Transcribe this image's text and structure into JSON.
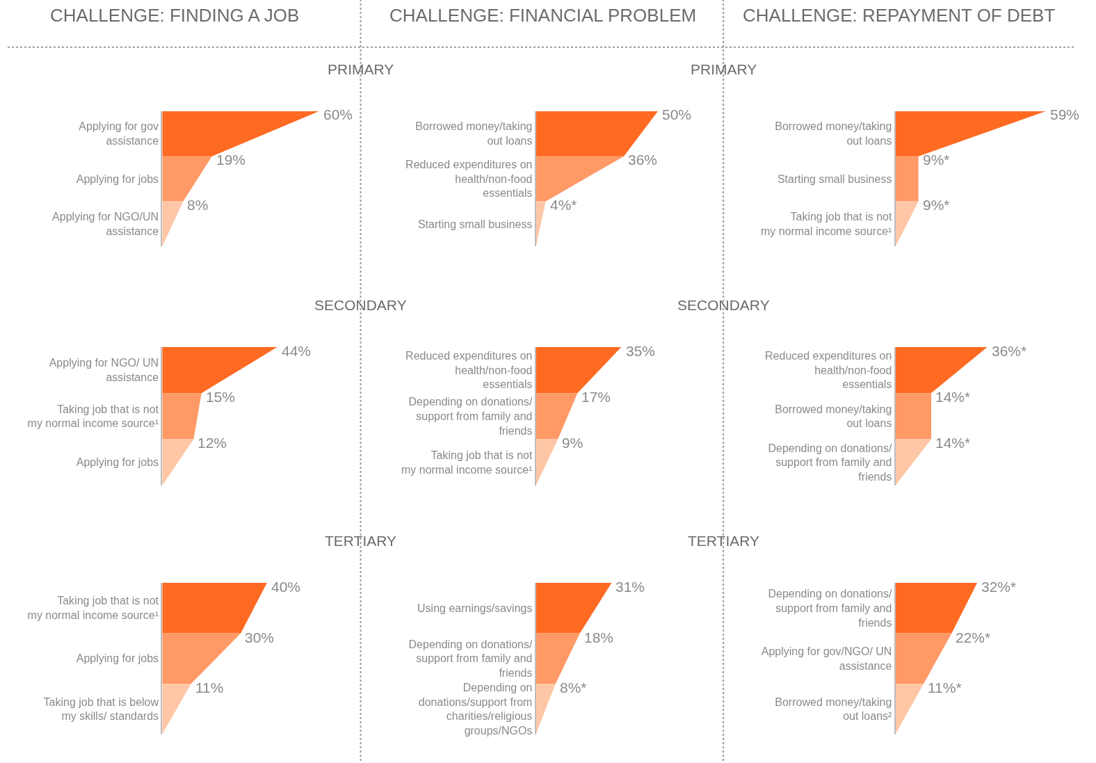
{
  "chart_data": [
    {
      "type": "other",
      "title": "CHALLENGE: FINDING A JOB",
      "categories": [
        "Applying for gov assistance",
        "Applying for jobs",
        "Applying for NGO/UN assistance"
      ],
      "values": [
        60,
        19,
        8
      ],
      "value_labels": [
        "60%",
        "19%",
        "8%"
      ],
      "colors": [
        "#ff6a22",
        "#ff9966",
        "#ffc7a6"
      ]
    },
    {
      "type": "other",
      "title": "CHALLENGE: FINANCIAL PROBLEM",
      "subtitle": "PRIMARY",
      "categories": [
        "Borrowed money/taking out loans",
        "Reduced expenditures on health/non-food essentials",
        "Starting small business"
      ],
      "values": [
        50,
        36,
        4
      ],
      "value_labels": [
        "50%",
        "36%",
        "4%*"
      ],
      "colors": [
        "#ff6a22",
        "#ff9966",
        "#ffc7a6"
      ]
    },
    {
      "type": "other",
      "title": "CHALLENGE: REPAYMENT OF DEBT",
      "subtitle": "PRIMARY",
      "categories": [
        "Borrowed money/taking out loans",
        "Starting small business",
        "Taking job that is not my normal income source¹"
      ],
      "values": [
        59,
        9,
        9
      ],
      "value_labels": [
        "59%",
        "9%*",
        "9%*"
      ],
      "colors": [
        "#ff6a22",
        "#ff9966",
        "#ffc7a6"
      ]
    },
    {
      "type": "other",
      "categories": [
        "Applying for NGO/ UN assistance",
        "Taking job that is not my normal income source¹",
        "Applying for jobs"
      ],
      "values": [
        44,
        15,
        12
      ],
      "value_labels": [
        "44%",
        "15%",
        "12%"
      ],
      "colors": [
        "#ff6a22",
        "#ff9966",
        "#ffc7a6"
      ]
    },
    {
      "type": "other",
      "subtitle": "SECONDARY",
      "categories": [
        "Reduced expenditures on health/non-food essentials",
        "Depending on donations/ support from family and friends",
        "Taking job that is not my normal income source¹"
      ],
      "values": [
        35,
        17,
        9
      ],
      "value_labels": [
        "35%",
        "17%",
        "9%"
      ],
      "colors": [
        "#ff6a22",
        "#ff9966",
        "#ffc7a6"
      ]
    },
    {
      "type": "other",
      "subtitle": "SECONDARY",
      "categories": [
        "Reduced expenditures on health/non-food essentials",
        "Borrowed money/taking out loans",
        "Depending on donations/ support from family and friends"
      ],
      "values": [
        36,
        14,
        14
      ],
      "value_labels": [
        "36%*",
        "14%*",
        "14%*"
      ],
      "colors": [
        "#ff6a22",
        "#ff9966",
        "#ffc7a6"
      ]
    },
    {
      "type": "other",
      "categories": [
        "Taking job that is not my normal income source¹",
        "Applying for jobs",
        "Taking job that is below my skills/ standards"
      ],
      "values": [
        40,
        30,
        11
      ],
      "value_labels": [
        "40%",
        "30%",
        "11%"
      ],
      "colors": [
        "#ff6a22",
        "#ff9966",
        "#ffc7a6"
      ]
    },
    {
      "type": "other",
      "subtitle": "TERTIARY",
      "categories": [
        "Using earnings/savings",
        "Depending on donations/ support from family and friends",
        "Depending on donations/support from charities/religious groups/NGOs"
      ],
      "values": [
        31,
        18,
        8
      ],
      "value_labels": [
        "31%",
        "18%",
        "8%*"
      ],
      "colors": [
        "#ff6a22",
        "#ff9966",
        "#ffc7a6"
      ]
    },
    {
      "type": "other",
      "subtitle": "TERTIARY",
      "categories": [
        "Depending on donations/ support from family and friends",
        "Applying for gov/NGO/ UN assistance",
        "Borrowed money/taking out loans²"
      ],
      "values": [
        32,
        22,
        11
      ],
      "value_labels": [
        "32%*",
        "22%*",
        "11%*"
      ],
      "colors": [
        "#ff6a22",
        "#ff9966",
        "#ffc7a6"
      ]
    }
  ]
}
